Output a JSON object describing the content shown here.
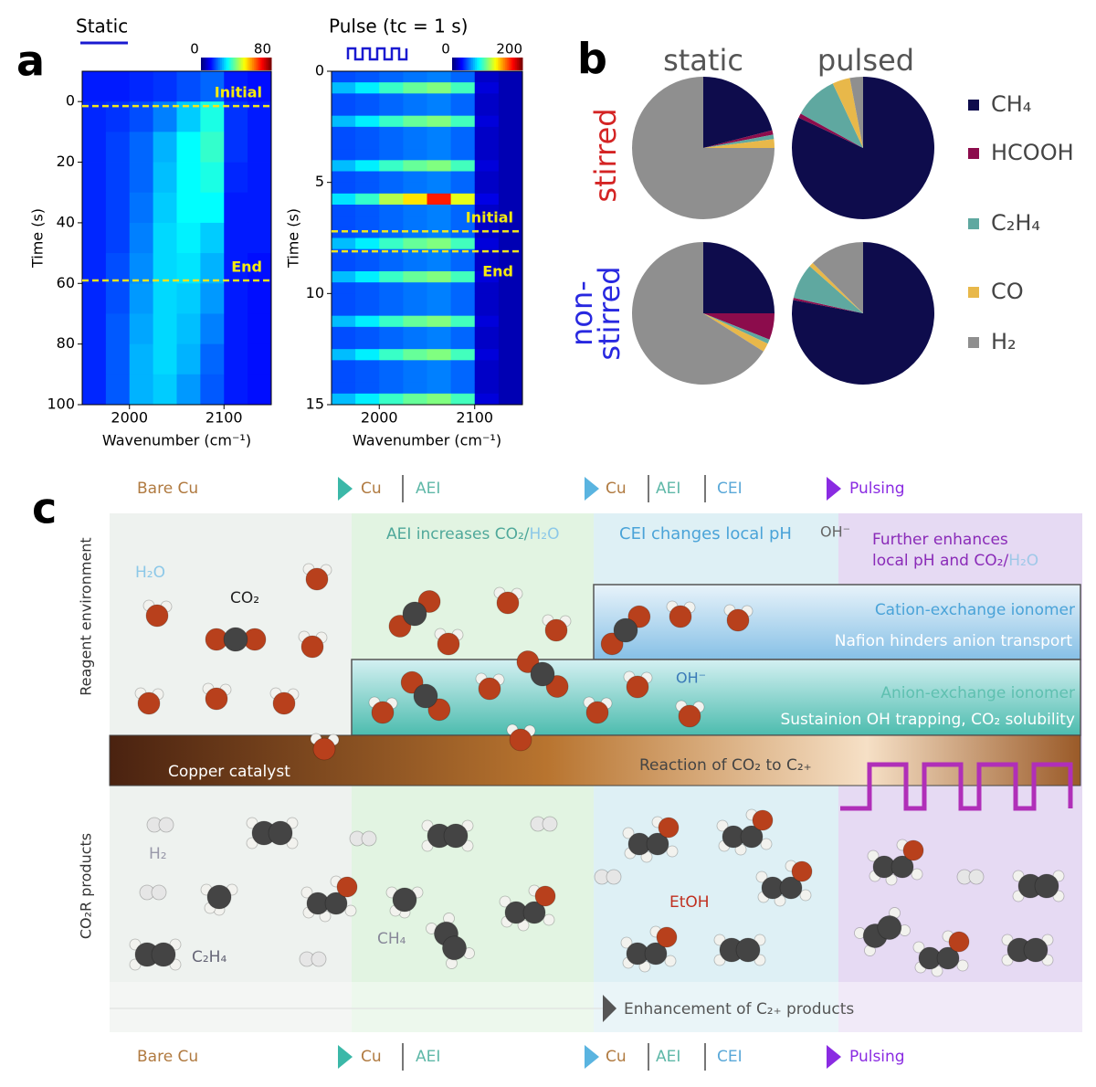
{
  "chart_data": [
    {
      "type": "heatmap",
      "panel": "a",
      "title": "Static",
      "xlabel": "Wavenumber (cm⁻¹)",
      "ylabel": "Time (s)",
      "xlim": [
        1950,
        2150
      ],
      "xticks": [
        2000,
        2100
      ],
      "ylim": [
        -10,
        100
      ],
      "y_inverted": true,
      "yticks": [
        0,
        20,
        40,
        60,
        80,
        100
      ],
      "xbins": [
        1950,
        1975,
        2000,
        2025,
        2050,
        2075,
        2100,
        2125,
        2150
      ],
      "ybins": [
        -10,
        0,
        10,
        20,
        30,
        40,
        50,
        60,
        70,
        80,
        90,
        100
      ],
      "z": [
        [
          12,
          12,
          13,
          14,
          16,
          18,
          12,
          11
        ],
        [
          13,
          14,
          16,
          20,
          26,
          32,
          14,
          12
        ],
        [
          13,
          15,
          18,
          24,
          30,
          34,
          14,
          12
        ],
        [
          13,
          15,
          18,
          25,
          30,
          32,
          13,
          12
        ],
        [
          13,
          15,
          19,
          26,
          30,
          30,
          12,
          12
        ],
        [
          13,
          15,
          20,
          27,
          29,
          26,
          12,
          12
        ],
        [
          13,
          16,
          21,
          27,
          28,
          24,
          12,
          11
        ],
        [
          13,
          16,
          22,
          27,
          26,
          22,
          12,
          11
        ],
        [
          13,
          17,
          23,
          27,
          25,
          20,
          12,
          11
        ],
        [
          13,
          17,
          24,
          27,
          24,
          18,
          12,
          11
        ],
        [
          13,
          17,
          24,
          26,
          22,
          17,
          12,
          11
        ]
      ],
      "zlim": [
        0,
        80
      ],
      "zticks": [
        0,
        80
      ],
      "annotations": [
        {
          "text": "Initial",
          "y": 1.5
        },
        {
          "text": "End",
          "y": 59
        }
      ]
    },
    {
      "type": "heatmap",
      "title": "Pulse (tc = 1 s)",
      "xlabel": "Wavenumber (cm⁻¹)",
      "ylabel": "Time (s)",
      "xlim": [
        1950,
        2150
      ],
      "xticks": [
        2000,
        2100
      ],
      "ylim": [
        0,
        15
      ],
      "y_inverted": true,
      "yticks": [
        0,
        5,
        10,
        15
      ],
      "xbins": [
        1950,
        1975,
        2000,
        2025,
        2050,
        2075,
        2100,
        2125,
        2150
      ],
      "ybins": [
        0,
        0.5,
        1,
        1.5,
        2,
        2.5,
        3,
        3.5,
        4,
        4.5,
        5,
        5.5,
        6,
        6.5,
        7,
        7.5,
        8,
        8.5,
        9,
        9.5,
        10,
        10.5,
        11,
        11.5,
        12,
        12.5,
        13,
        13.5,
        14,
        14.5,
        15
      ],
      "z": [
        [
          40,
          42,
          45,
          48,
          50,
          45,
          14,
          10
        ],
        [
          62,
          72,
          86,
          95,
          100,
          88,
          18,
          10
        ],
        [
          40,
          42,
          45,
          48,
          50,
          45,
          14,
          10
        ],
        [
          40,
          42,
          45,
          48,
          50,
          45,
          14,
          10
        ],
        [
          62,
          72,
          86,
          95,
          100,
          88,
          18,
          10
        ],
        [
          40,
          42,
          45,
          48,
          50,
          45,
          14,
          10
        ],
        [
          40,
          42,
          45,
          48,
          50,
          45,
          14,
          10
        ],
        [
          40,
          42,
          45,
          48,
          50,
          45,
          14,
          10
        ],
        [
          62,
          72,
          86,
          95,
          100,
          88,
          18,
          10
        ],
        [
          40,
          42,
          45,
          48,
          50,
          45,
          14,
          10
        ],
        [
          40,
          42,
          45,
          48,
          50,
          45,
          14,
          10
        ],
        [
          70,
          85,
          110,
          130,
          170,
          120,
          20,
          10
        ],
        [
          40,
          42,
          45,
          48,
          50,
          45,
          14,
          10
        ],
        [
          40,
          42,
          45,
          48,
          50,
          45,
          14,
          10
        ],
        [
          40,
          42,
          45,
          48,
          50,
          45,
          14,
          10
        ],
        [
          62,
          72,
          86,
          95,
          100,
          88,
          18,
          10
        ],
        [
          40,
          42,
          45,
          48,
          50,
          45,
          14,
          10
        ],
        [
          40,
          42,
          45,
          48,
          50,
          45,
          14,
          10
        ],
        [
          62,
          72,
          86,
          95,
          100,
          88,
          18,
          10
        ],
        [
          40,
          42,
          45,
          48,
          50,
          45,
          14,
          10
        ],
        [
          40,
          42,
          45,
          48,
          50,
          45,
          14,
          10
        ],
        [
          40,
          42,
          45,
          48,
          50,
          45,
          14,
          10
        ],
        [
          62,
          72,
          86,
          95,
          100,
          88,
          18,
          10
        ],
        [
          40,
          42,
          45,
          48,
          50,
          45,
          14,
          10
        ],
        [
          40,
          42,
          45,
          48,
          50,
          45,
          14,
          10
        ],
        [
          62,
          72,
          86,
          95,
          100,
          88,
          18,
          10
        ],
        [
          40,
          42,
          45,
          48,
          50,
          45,
          14,
          10
        ],
        [
          40,
          42,
          45,
          48,
          50,
          45,
          14,
          10
        ],
        [
          40,
          42,
          45,
          48,
          50,
          45,
          14,
          10
        ],
        [
          62,
          72,
          86,
          95,
          100,
          88,
          18,
          10
        ]
      ],
      "zlim": [
        0,
        200
      ],
      "zticks": [
        0,
        200
      ],
      "annotations": [
        {
          "text": "Initial",
          "y": 7.2
        },
        {
          "text": "End",
          "y": 8.1
        }
      ]
    },
    {
      "type": "pie",
      "panel": "b",
      "categories": [
        "CH₄",
        "HCOOH",
        "C₂H₄",
        "CO",
        "H₂"
      ],
      "colors": [
        "#0e0c4c",
        "#8c0c4c",
        "#5fa8a0",
        "#e8b84a",
        "#8f8f8f"
      ],
      "columns": [
        "static",
        "pulsed"
      ],
      "rows": [
        "stirred",
        "non-\nstirred"
      ],
      "row_colors": [
        "#d42424",
        "#2828e0"
      ],
      "values": [
        [
          [
            21,
            1,
            1,
            2,
            75
          ],
          [
            82,
            1,
            10,
            4,
            3
          ]
        ],
        [
          [
            25,
            6,
            1,
            2,
            66
          ],
          [
            78,
            0.5,
            8,
            1,
            12.5
          ]
        ]
      ]
    }
  ],
  "diagram": {
    "panel": "c",
    "stages": [
      "Bare Cu",
      "Cu",
      "AEI",
      "Cu",
      "AEI",
      "CEI",
      "Pulsing"
    ],
    "row_labels": [
      "Reagent environment",
      "CO₂R products"
    ],
    "aei_text": [
      "AEI increases CO₂/",
      "H₂O"
    ],
    "cei_text": "CEI changes local pH",
    "oh_top": "OH⁻",
    "pulse_text": [
      "Further enhances",
      "local pH and CO₂/",
      "H₂O"
    ],
    "cation_layer": [
      "Cation-exchange ionomer",
      "Nafion hinders anion transport"
    ],
    "anion_layer": [
      "Anion-exchange ionomer",
      "Sustainion OH trapping, CO₂ solubility"
    ],
    "oh_mid": "OH⁻",
    "catalyst": [
      "Copper catalyst",
      "Reaction of CO₂ to C₂₊"
    ],
    "molecule_labels": [
      "H₂O",
      "CO₂",
      "H₂",
      "C₂H₄",
      "CH₄",
      "EtOH"
    ],
    "footer": "Enhancement of C₂₊ products"
  }
}
